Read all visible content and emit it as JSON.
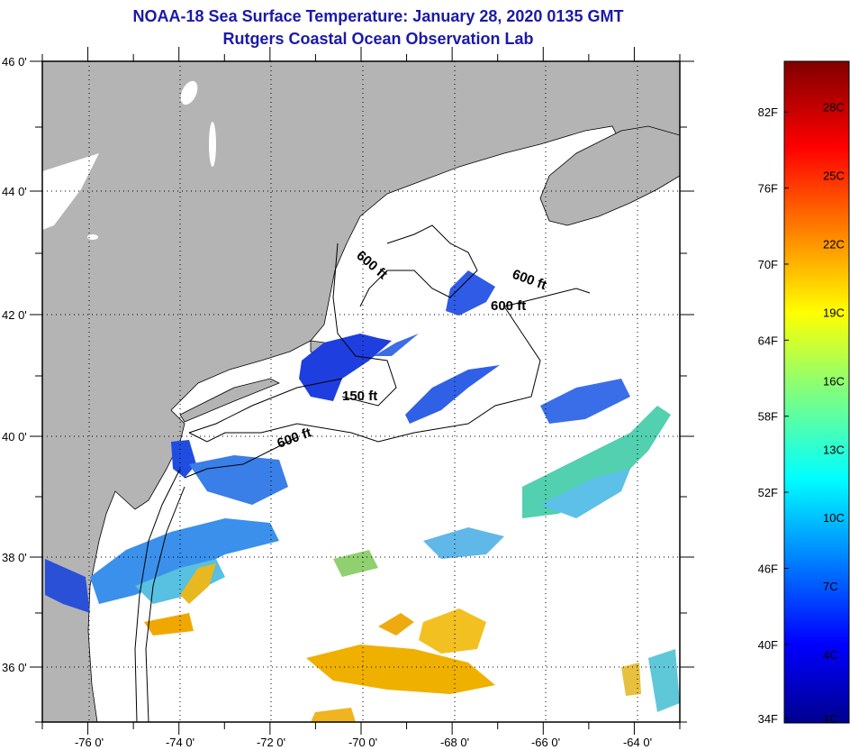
{
  "title": "NOAA-18 Sea Surface Temperature:  January 28, 2020 0135 GMT",
  "subtitle": "Rutgers Coastal Ocean Observation Lab",
  "map": {
    "lon_range": [
      -77,
      -63
    ],
    "lat_range": [
      35,
      46
    ],
    "lat_labels": [
      "46 0'",
      "44 0'",
      "42 0'",
      "40 0'",
      "38 0'",
      "36 0'"
    ],
    "lon_labels": [
      "-76 0'",
      "-74 0'",
      "-72 0'",
      "-70 0'",
      "-68 0'",
      "-66 0'",
      "-64 0'"
    ],
    "contour_labels": [
      "600 ft",
      "600 ft",
      "600 ft",
      "150 ft",
      "600 ft"
    ],
    "colors": {
      "land": "#b4b4b4",
      "ocean": "#ffffff",
      "contour": "#000000"
    }
  },
  "colorbar": {
    "fahrenheit_labels": [
      "82F",
      "76F",
      "70F",
      "64F",
      "58F",
      "52F",
      "46F",
      "40F",
      "34F"
    ],
    "celsius_labels": [
      "28C",
      "25C",
      "22C",
      "19C",
      "16C",
      "13C",
      "10C",
      "7C",
      "4C",
      "1C"
    ],
    "range_c": [
      1,
      30
    ]
  }
}
